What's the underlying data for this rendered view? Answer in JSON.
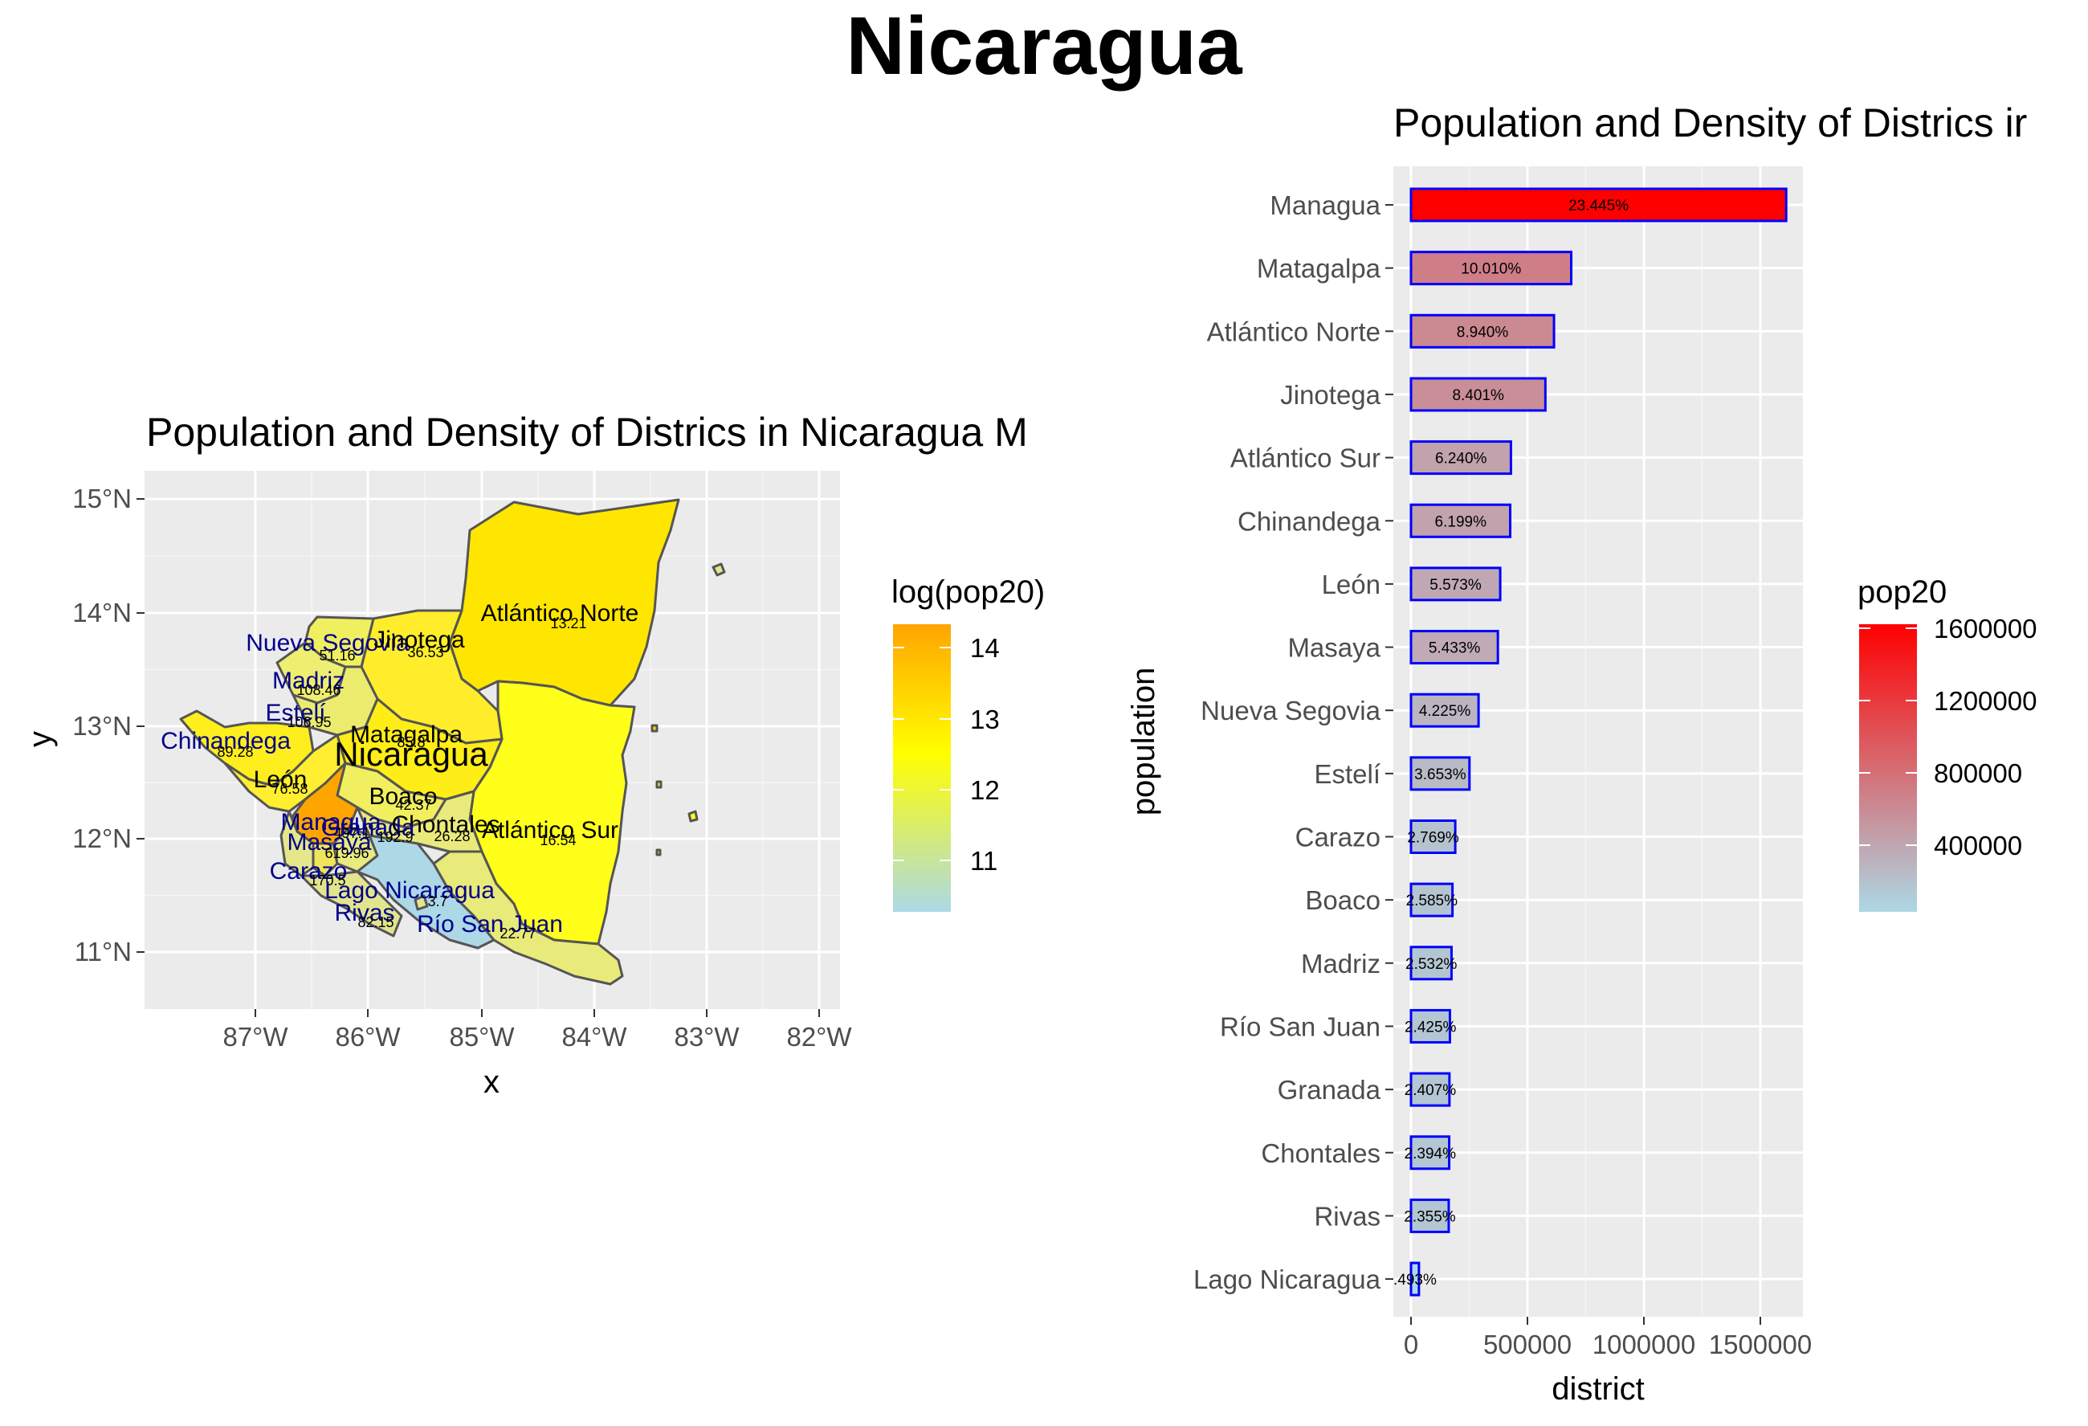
{
  "figure": {
    "title": "Nicaragua"
  },
  "colors": {
    "panel_bg": "#ebebeb",
    "grid": "#ffffff",
    "map_outline": "#555555",
    "map_label": "#00008b",
    "bar_outline": "#0000ff",
    "pop_low": "#add8e6",
    "pop_high": "#ff0000",
    "log_low": "#add8e6",
    "log_mid": "#ffff00",
    "log_high": "#ffa500"
  },
  "map": {
    "title": "Population and Density of Districs in Nicaragua M",
    "xlabel": "x",
    "ylabel": "y",
    "x_ticks": [
      "87°W",
      "86°W",
      "85°W",
      "84°W",
      "83°W",
      "82°W"
    ],
    "y_ticks": [
      "11°N",
      "12°N",
      "13°N",
      "14°N",
      "15°N"
    ],
    "country_label": "Nicaragua",
    "legend": {
      "title": "log(pop20)",
      "labels": [
        "14",
        "13",
        "12",
        "11"
      ]
    },
    "districts": [
      {
        "name": "Nueva Segovia",
        "density": "51.16"
      },
      {
        "name": "Jinotega",
        "density": "36.53"
      },
      {
        "name": "Madriz",
        "density": "108.46"
      },
      {
        "name": "Estelí",
        "density": "106.95"
      },
      {
        "name": "Chinandega",
        "density": "89.28"
      },
      {
        "name": "León",
        "density": "76.58"
      },
      {
        "name": "Matagalpa",
        "density": "85.8"
      },
      {
        "name": "Atlántico Norte",
        "density": "13.21"
      },
      {
        "name": "Atlántico Sur",
        "density": "16.54"
      },
      {
        "name": "Boaco",
        "density": "42.37"
      },
      {
        "name": "Chontales",
        "density": "26.28"
      },
      {
        "name": "Managua",
        "density": "497.1"
      },
      {
        "name": "Granada",
        "density": "192.9"
      },
      {
        "name": "Masaya",
        "density": "619.96"
      },
      {
        "name": "Carazo",
        "density": "170.5"
      },
      {
        "name": "Rivas",
        "density": "82.15"
      },
      {
        "name": "Lago Nicaragua",
        "density": "3.7"
      },
      {
        "name": "Río San Juan",
        "density": "22.77"
      }
    ]
  },
  "bars": {
    "legend": {
      "title": "pop20",
      "labels": [
        "1600000",
        "1200000",
        "800000",
        "400000"
      ]
    }
  },
  "chart_data": {
    "type": "bar",
    "orientation": "horizontal",
    "title": "Population and Density of Districs ir",
    "xlabel": "district",
    "ylabel": "population",
    "xlim": [
      0,
      1700000
    ],
    "x_ticks": [
      "0",
      "500000",
      "1000000",
      "1500000"
    ],
    "x_tick_values": [
      0,
      500000,
      1000000,
      1500000
    ],
    "grid": true,
    "legend_position": "right",
    "categories": [
      "Managua",
      "Matagalpa",
      "Atlántico Norte",
      "Jinotega",
      "Atlántico Sur",
      "Chinandega",
      "León",
      "Masaya",
      "Nueva Segovia",
      "Estelí",
      "Carazo",
      "Boaco",
      "Madriz",
      "Río San Juan",
      "Granada",
      "Chontales",
      "Rivas",
      "Lago Nicaragua"
    ],
    "values": [
      1611000,
      688000,
      614000,
      577000,
      429000,
      426000,
      383000,
      373000,
      290000,
      251000,
      190000,
      178000,
      174000,
      167000,
      165000,
      164000,
      162000,
      34000
    ],
    "labels": [
      "23.445%",
      "10.010%",
      "8.940%",
      "8.401%",
      "6.240%",
      "6.199%",
      "5.573%",
      "5.433%",
      "4.225%",
      "3.653%",
      "2.769%",
      "2.585%",
      "2.532%",
      "2.425%",
      "2.407%",
      "2.394%",
      "2.355%",
      ".493%"
    ]
  }
}
